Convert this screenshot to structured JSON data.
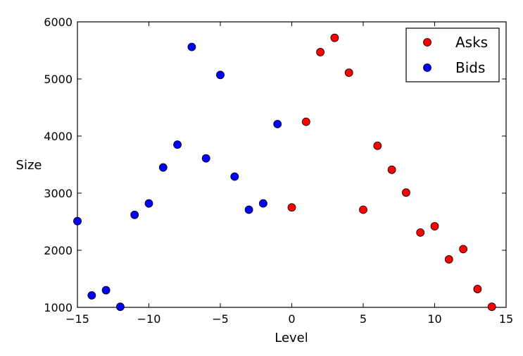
{
  "chart_data": {
    "type": "scatter",
    "title": "",
    "xlabel": "Level",
    "ylabel": "Size",
    "xlim": [
      -15,
      15
    ],
    "ylim": [
      1000,
      6000
    ],
    "xticks": [
      -15,
      -10,
      -5,
      0,
      5,
      10,
      15
    ],
    "xtick_labels": [
      "−15",
      "−10",
      "−5",
      "0",
      "5",
      "10",
      "15"
    ],
    "yticks": [
      1000,
      2000,
      3000,
      4000,
      5000,
      6000
    ],
    "ytick_labels": [
      "1000",
      "2000",
      "3000",
      "4000",
      "5000",
      "6000"
    ],
    "grid": false,
    "legend_position": "top-right",
    "series": [
      {
        "name": "Asks",
        "color": "#ff0000",
        "x": [
          0,
          1,
          2,
          3,
          4,
          5,
          6,
          7,
          8,
          9,
          10,
          11,
          12,
          13,
          14
        ],
        "y": [
          2750,
          4250,
          5470,
          5720,
          5110,
          2710,
          3830,
          3410,
          3010,
          2310,
          2420,
          1840,
          2020,
          1320,
          1010
        ]
      },
      {
        "name": "Bids",
        "color": "#0000ff",
        "x": [
          -15,
          -14,
          -13,
          -12,
          -11,
          -10,
          -9,
          -8,
          -7,
          -6,
          -5,
          -4,
          -3,
          -2,
          -1
        ],
        "y": [
          2510,
          1210,
          1300,
          1010,
          2620,
          2820,
          3450,
          3850,
          5560,
          3610,
          5070,
          3290,
          2710,
          2820,
          4210
        ]
      }
    ]
  }
}
